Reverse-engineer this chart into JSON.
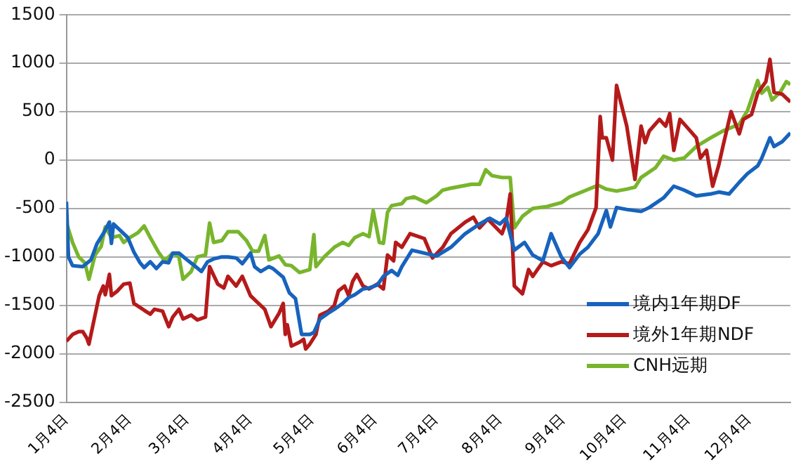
{
  "chart_data": {
    "type": "line",
    "xlim": [
      "--01-04",
      "--12-24"
    ],
    "xticks": [
      {
        "value": "--01-04",
        "label": "1月4日"
      },
      {
        "value": "--02-04",
        "label": "2月4日"
      },
      {
        "value": "--03-04",
        "label": "3月4日"
      },
      {
        "value": "--04-04",
        "label": "4月4日"
      },
      {
        "value": "--05-04",
        "label": "5月4日"
      },
      {
        "value": "--06-04",
        "label": "6月4日"
      },
      {
        "value": "--07-04",
        "label": "7月4日"
      },
      {
        "value": "--08-04",
        "label": "8月4日"
      },
      {
        "value": "--09-04",
        "label": "9月4日"
      },
      {
        "value": "--10-04",
        "label": "10月4日"
      },
      {
        "value": "--11-04",
        "label": "11月4日"
      },
      {
        "value": "--12-04",
        "label": "12月4日"
      }
    ],
    "ylim": [
      -2500,
      1500
    ],
    "yticks": [
      -2500,
      -2000,
      -1500,
      -1000,
      -500,
      0,
      500,
      1000,
      1500
    ],
    "grid": "y",
    "legend": "bottom right",
    "marker": "none",
    "line_style": "solid",
    "series": [
      {
        "name": "境内1年期DF",
        "color": "#1763bd",
        "x": [
          "--01-04",
          "--01-05",
          "--01-07",
          "--01-12",
          "--01-16",
          "--01-19",
          "--01-22",
          "--01-25",
          "--01-26",
          "--01-27",
          "--01-30",
          "--02-03",
          "--02-06",
          "--02-09",
          "--02-11",
          "--02-14",
          "--02-17",
          "--02-20",
          "--02-23",
          "--02-25",
          "--02-28",
          "--03-04",
          "--03-07",
          "--03-11",
          "--03-14",
          "--03-17",
          "--03-21",
          "--03-24",
          "--03-28",
          "--03-31",
          "--04-04",
          "--04-06",
          "--04-09",
          "--04-13",
          "--04-15",
          "--04-20",
          "--04-23",
          "--04-26",
          "--04-29",
          "--05-03",
          "--05-05",
          "--05-08",
          "--05-12",
          "--05-15",
          "--05-19",
          "--05-22",
          "--05-25",
          "--05-29",
          "--06-01",
          "--06-05",
          "--06-08",
          "--06-12",
          "--06-15",
          "--06-17",
          "--06-22",
          "--06-30",
          "--07-04",
          "--07-11",
          "--07-18",
          "--07-25",
          "--07-30",
          "--08-04",
          "--08-07",
          "--08-11",
          "--08-16",
          "--08-20",
          "--08-25",
          "--08-29",
          "--09-03",
          "--09-07",
          "--09-12",
          "--09-16",
          "--09-21",
          "--09-25",
          "--09-27",
          "--09-30",
          "--10-05",
          "--10-12",
          "--10-16",
          "--10-23",
          "--10-28",
          "--11-02",
          "--11-08",
          "--11-15",
          "--11-19",
          "--11-24",
          "--11-29",
          "--12-03",
          "--12-08",
          "--12-10",
          "--12-14",
          "--12-16",
          "--12-20",
          "--12-24"
        ],
        "values": [
          -430,
          -1000,
          -1090,
          -1100,
          -1030,
          -860,
          -760,
          -640,
          -860,
          -660,
          -720,
          -800,
          -950,
          -1060,
          -1110,
          -1050,
          -1120,
          -1050,
          -1060,
          -960,
          -960,
          -1030,
          -1080,
          -1150,
          -1050,
          -1020,
          -1000,
          -1000,
          -1010,
          -1070,
          -960,
          -1100,
          -1150,
          -1100,
          -1120,
          -1210,
          -1370,
          -1430,
          -1800,
          -1800,
          -1780,
          -1640,
          -1580,
          -1540,
          -1480,
          -1420,
          -1390,
          -1330,
          -1320,
          -1290,
          -1200,
          -1140,
          -1190,
          -1100,
          -930,
          -970,
          -990,
          -900,
          -760,
          -660,
          -600,
          -660,
          -600,
          -930,
          -850,
          -980,
          -1040,
          -760,
          -1000,
          -1110,
          -970,
          -900,
          -760,
          -520,
          -690,
          -490,
          -510,
          -530,
          -490,
          -390,
          -270,
          -310,
          -370,
          -350,
          -330,
          -350,
          -230,
          -140,
          -60,
          20,
          230,
          140,
          190,
          280
        ]
      },
      {
        "name": "境外1年期NDF",
        "color": "#b51a1a",
        "x": [
          "--01-04",
          "--01-07",
          "--01-10",
          "--01-12",
          "--01-14",
          "--01-15",
          "--01-18",
          "--01-20",
          "--01-22",
          "--01-23",
          "--01-25",
          "--01-26",
          "--01-29",
          "--02-01",
          "--02-04",
          "--02-06",
          "--02-11",
          "--02-14",
          "--02-16",
          "--02-20",
          "--02-23",
          "--02-25",
          "--02-28",
          "--03-02",
          "--03-06",
          "--03-09",
          "--03-13",
          "--03-15",
          "--03-19",
          "--03-22",
          "--03-24",
          "--03-28",
          "--03-31",
          "--04-04",
          "--04-07",
          "--04-11",
          "--04-14",
          "--04-18",
          "--04-20",
          "--04-21",
          "--04-22",
          "--04-24",
          "--04-28",
          "--04-30",
          "--05-01",
          "--05-03",
          "--05-06",
          "--05-08",
          "--05-12",
          "--05-15",
          "--05-17",
          "--05-20",
          "--05-22",
          "--05-24",
          "--05-26",
          "--05-29",
          "--06-01",
          "--06-05",
          "--06-08",
          "--06-10",
          "--06-13",
          "--06-14",
          "--06-17",
          "--06-21",
          "--06-28",
          "--07-02",
          "--07-07",
          "--07-11",
          "--07-18",
          "--07-22",
          "--07-25",
          "--07-29",
          "--08-05",
          "--08-07",
          "--08-09",
          "--08-11",
          "--08-15",
          "--08-18",
          "--08-20",
          "--08-25",
          "--08-29",
          "--09-03",
          "--09-07",
          "--09-12",
          "--09-16",
          "--09-20",
          "--09-22",
          "--09-23",
          "--09-25",
          "--09-28",
          "--09-30",
          "--10-05",
          "--10-09",
          "--10-12",
          "--10-14",
          "--10-16",
          "--10-21",
          "--10-24",
          "--10-26",
          "--10-28",
          "--10-31",
          "--11-03",
          "--11-08",
          "--11-10",
          "--11-13",
          "--11-16",
          "--11-19",
          "--11-21",
          "--11-25",
          "--11-29",
          "--12-01",
          "--12-05",
          "--12-08",
          "--12-12",
          "--12-14",
          "--12-16",
          "--12-20",
          "--12-24"
        ],
        "values": [
          -1870,
          -1800,
          -1770,
          -1770,
          -1840,
          -1900,
          -1600,
          -1400,
          -1300,
          -1390,
          -1180,
          -1400,
          -1350,
          -1280,
          -1270,
          -1480,
          -1550,
          -1590,
          -1540,
          -1560,
          -1720,
          -1620,
          -1540,
          -1640,
          -1600,
          -1650,
          -1620,
          -1100,
          -1280,
          -1320,
          -1200,
          -1300,
          -1200,
          -1400,
          -1460,
          -1540,
          -1720,
          -1580,
          -1480,
          -1800,
          -1700,
          -1920,
          -1880,
          -1850,
          -1950,
          -1900,
          -1800,
          -1600,
          -1560,
          -1500,
          -1350,
          -1300,
          -1400,
          -1250,
          -1180,
          -1300,
          -1330,
          -1280,
          -1330,
          -980,
          -1040,
          -850,
          -900,
          -760,
          -810,
          -1010,
          -900,
          -760,
          -640,
          -590,
          -700,
          -610,
          -760,
          -640,
          -350,
          -1300,
          -1380,
          -1130,
          -1200,
          -1050,
          -1090,
          -1050,
          -1070,
          -850,
          -720,
          -490,
          450,
          230,
          230,
          0,
          770,
          350,
          -200,
          350,
          180,
          300,
          420,
          350,
          480,
          100,
          420,
          350,
          230,
          20,
          100,
          -270,
          -50,
          140,
          500,
          270,
          420,
          470,
          690,
          810,
          1040,
          700,
          680,
          600
        ]
      },
      {
        "name": "CNH远期",
        "color": "#78b52c",
        "x": [
          "--01-04",
          "--01-07",
          "--01-10",
          "--01-13",
          "--01-15",
          "--01-18",
          "--01-21",
          "--01-23",
          "--01-26",
          "--01-30",
          "--02-01",
          "--02-04",
          "--02-08",
          "--02-11",
          "--02-14",
          "--02-18",
          "--02-21",
          "--02-25",
          "--02-28",
          "--03-02",
          "--03-06",
          "--03-09",
          "--03-13",
          "--03-15",
          "--03-17",
          "--03-21",
          "--03-24",
          "--03-29",
          "--04-02",
          "--04-05",
          "--04-08",
          "--04-11",
          "--04-13",
          "--04-18",
          "--04-21",
          "--04-24",
          "--04-28",
          "--05-03",
          "--05-05",
          "--05-06",
          "--05-10",
          "--05-15",
          "--05-19",
          "--05-22",
          "--05-25",
          "--05-29",
          "--06-01",
          "--06-03",
          "--06-06",
          "--06-08",
          "--06-10",
          "--06-12",
          "--06-17",
          "--06-19",
          "--06-23",
          "--06-29",
          "--07-04",
          "--07-07",
          "--07-11",
          "--07-16",
          "--07-21",
          "--07-25",
          "--07-28",
          "--07-31",
          "--08-05",
          "--08-09",
          "--08-11",
          "--08-15",
          "--08-20",
          "--08-27",
          "--09-03",
          "--09-07",
          "--09-14",
          "--09-21",
          "--09-25",
          "--09-30",
          "--10-05",
          "--10-09",
          "--10-12",
          "--10-19",
          "--10-23",
          "--10-28",
          "--11-02",
          "--11-08",
          "--11-15",
          "--11-21",
          "--11-29",
          "--12-03",
          "--12-08",
          "--12-10",
          "--12-13",
          "--12-15",
          "--12-19",
          "--12-22",
          "--12-24"
        ],
        "values": [
          -650,
          -850,
          -1000,
          -1060,
          -1230,
          -980,
          -890,
          -690,
          -800,
          -780,
          -850,
          -800,
          -750,
          -680,
          -800,
          -950,
          -1040,
          -960,
          -1000,
          -1230,
          -1150,
          -1000,
          -980,
          -650,
          -850,
          -830,
          -740,
          -740,
          -830,
          -940,
          -940,
          -780,
          -1030,
          -990,
          -1080,
          -1090,
          -1160,
          -1130,
          -770,
          -1100,
          -1000,
          -900,
          -850,
          -880,
          -800,
          -760,
          -790,
          -520,
          -850,
          -860,
          -540,
          -470,
          -450,
          -400,
          -380,
          -440,
          -370,
          -310,
          -290,
          -270,
          -250,
          -250,
          -100,
          -160,
          -180,
          -180,
          -700,
          -580,
          -500,
          -480,
          -440,
          -380,
          -320,
          -260,
          -300,
          -320,
          -300,
          -280,
          -180,
          -80,
          40,
          0,
          20,
          140,
          230,
          300,
          370,
          510,
          820,
          690,
          750,
          620,
          700,
          810,
          780
        ]
      }
    ]
  }
}
